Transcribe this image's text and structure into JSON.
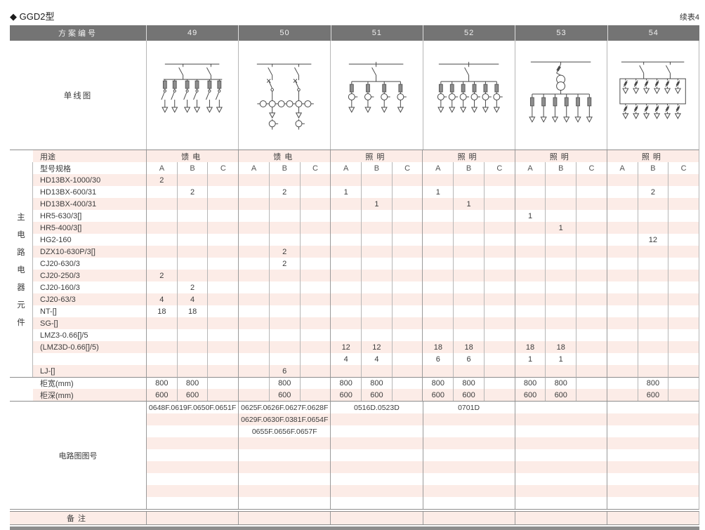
{
  "page": {
    "title": "◆ GGD2型",
    "continuation_note": "续表4"
  },
  "colors": {
    "header_bg": "#747474",
    "header_text": "#f0f0f0",
    "stripe_pink": "#fcece7",
    "grid_line": "#b6b6b6",
    "scheme_line": "#9a9a9a",
    "section_line": "#8d8d8d",
    "text": "#3c3c3c",
    "diagram_stroke": "#4a4a4a",
    "bottom_bar": "#8d8d8d"
  },
  "table": {
    "scheme_header": {
      "label": "方案编号",
      "schemes": [
        "49",
        "50",
        "51",
        "52",
        "53",
        "54"
      ]
    },
    "diagram_row": {
      "label": "单线图",
      "diagrams": [
        "feeder-two-switch-six-branch",
        "feeder-two-breaker-metered",
        "lighting-one-switch-four-branch",
        "lighting-one-switch-six-branch",
        "lighting-transformer-six-branch",
        "lighting-two-tier-twelve-branch"
      ]
    },
    "usage_row": {
      "label": "用途",
      "values": [
        "馈电",
        "馈电",
        "照明",
        "照明",
        "照明",
        "照明"
      ]
    },
    "spec_row": {
      "label": "型号规格",
      "sub_columns": [
        "A",
        "B",
        "C"
      ]
    },
    "left_group_label": "主电路电器元件",
    "component_rows": [
      {
        "label": "HD13BX-1000/30",
        "cells": [
          "2",
          "",
          "",
          "",
          "",
          "",
          "",
          "",
          "",
          "",
          "",
          "",
          "",
          "",
          "",
          "",
          "",
          ""
        ]
      },
      {
        "label": "HD13BX-600/31",
        "cells": [
          "",
          "2",
          "",
          "",
          "2",
          "",
          "1",
          "",
          "",
          "1",
          "",
          "",
          "",
          "",
          "",
          "",
          "2",
          ""
        ]
      },
      {
        "label": "HD13BX-400/31",
        "cells": [
          "",
          "",
          "",
          "",
          "",
          "",
          "",
          "1",
          "",
          "",
          "1",
          "",
          "",
          "",
          "",
          "",
          "",
          ""
        ]
      },
      {
        "label": "HR5-630/3[]",
        "cells": [
          "",
          "",
          "",
          "",
          "",
          "",
          "",
          "",
          "",
          "",
          "",
          "",
          "1",
          "",
          "",
          "",
          "",
          ""
        ]
      },
      {
        "label": "HR5-400/3[]",
        "cells": [
          "",
          "",
          "",
          "",
          "",
          "",
          "",
          "",
          "",
          "",
          "",
          "",
          "",
          "1",
          "",
          "",
          "",
          ""
        ]
      },
      {
        "label": "HG2-160",
        "cells": [
          "",
          "",
          "",
          "",
          "",
          "",
          "",
          "",
          "",
          "",
          "",
          "",
          "",
          "",
          "",
          "",
          "12",
          ""
        ]
      },
      {
        "label": "DZX10-630P/3[]",
        "cells": [
          "",
          "",
          "",
          "",
          "2",
          "",
          "",
          "",
          "",
          "",
          "",
          "",
          "",
          "",
          "",
          "",
          "",
          ""
        ]
      },
      {
        "label": "CJ20-630/3",
        "cells": [
          "",
          "",
          "",
          "",
          "2",
          "",
          "",
          "",
          "",
          "",
          "",
          "",
          "",
          "",
          "",
          "",
          "",
          ""
        ]
      },
      {
        "label": "CJ20-250/3",
        "cells": [
          "2",
          "",
          "",
          "",
          "",
          "",
          "",
          "",
          "",
          "",
          "",
          "",
          "",
          "",
          "",
          "",
          "",
          ""
        ]
      },
      {
        "label": "CJ20-160/3",
        "cells": [
          "",
          "2",
          "",
          "",
          "",
          "",
          "",
          "",
          "",
          "",
          "",
          "",
          "",
          "",
          "",
          "",
          "",
          ""
        ]
      },
      {
        "label": "CJ20-63/3",
        "cells": [
          "4",
          "4",
          "",
          "",
          "",
          "",
          "",
          "",
          "",
          "",
          "",
          "",
          "",
          "",
          "",
          "",
          "",
          ""
        ]
      },
      {
        "label": "NT-[]",
        "cells": [
          "18",
          "18",
          "",
          "",
          "",
          "",
          "",
          "",
          "",
          "",
          "",
          "",
          "",
          "",
          "",
          "",
          "",
          ""
        ]
      },
      {
        "label": "SG-[]",
        "cells": [
          "",
          "",
          "",
          "",
          "",
          "",
          "",
          "",
          "",
          "",
          "",
          "",
          "",
          "",
          "",
          "",
          "",
          ""
        ]
      },
      {
        "label": "LMZ3-0.66[]/5",
        "cells": [
          "",
          "",
          "",
          "",
          "",
          "",
          "",
          "",
          "",
          "",
          "",
          "",
          "",
          "",
          "",
          "",
          "",
          ""
        ]
      },
      {
        "label": "(LMZ3D-0.66[]/5)",
        "cells": [
          "",
          "",
          "",
          "",
          "",
          "",
          "12",
          "12",
          "",
          "18",
          "18",
          "",
          "18",
          "18",
          "",
          "",
          "",
          ""
        ]
      },
      {
        "label": "",
        "cells": [
          "",
          "",
          "",
          "",
          "",
          "",
          "4",
          "4",
          "",
          "6",
          "6",
          "",
          "1",
          "1",
          "",
          "",
          "",
          ""
        ]
      },
      {
        "label": "LJ-[]",
        "cells": [
          "",
          "",
          "",
          "",
          "6",
          "",
          "",
          "",
          "",
          "",
          "",
          "",
          "",
          "",
          "",
          "",
          "",
          ""
        ]
      }
    ],
    "width_row": {
      "label": "柜宽(mm)",
      "cells": [
        "800",
        "800",
        "",
        "",
        "800",
        "",
        "800",
        "800",
        "",
        "800",
        "800",
        "",
        "800",
        "800",
        "",
        "",
        "800",
        ""
      ]
    },
    "depth_row": {
      "label": "柜深(mm)",
      "cells": [
        "600",
        "600",
        "",
        "",
        "600",
        "",
        "600",
        "600",
        "",
        "600",
        "600",
        "",
        "600",
        "600",
        "",
        "",
        "600",
        ""
      ]
    },
    "circuit_row": {
      "label": "电路图图号",
      "stripe_rows": 9,
      "lines_per_scheme": [
        [
          "0648F.0619F.0650F.0651F"
        ],
        [
          "0625F.0626F.0627F.0628F",
          "0629F.0630F.0381F.0654F",
          "0655F.0656F.0657F"
        ],
        [
          "0516D.0523D"
        ],
        [
          "0701D"
        ],
        [],
        []
      ]
    },
    "remark_row": {
      "label": "备注",
      "values": [
        "",
        "",
        "",
        "",
        "",
        ""
      ]
    }
  }
}
